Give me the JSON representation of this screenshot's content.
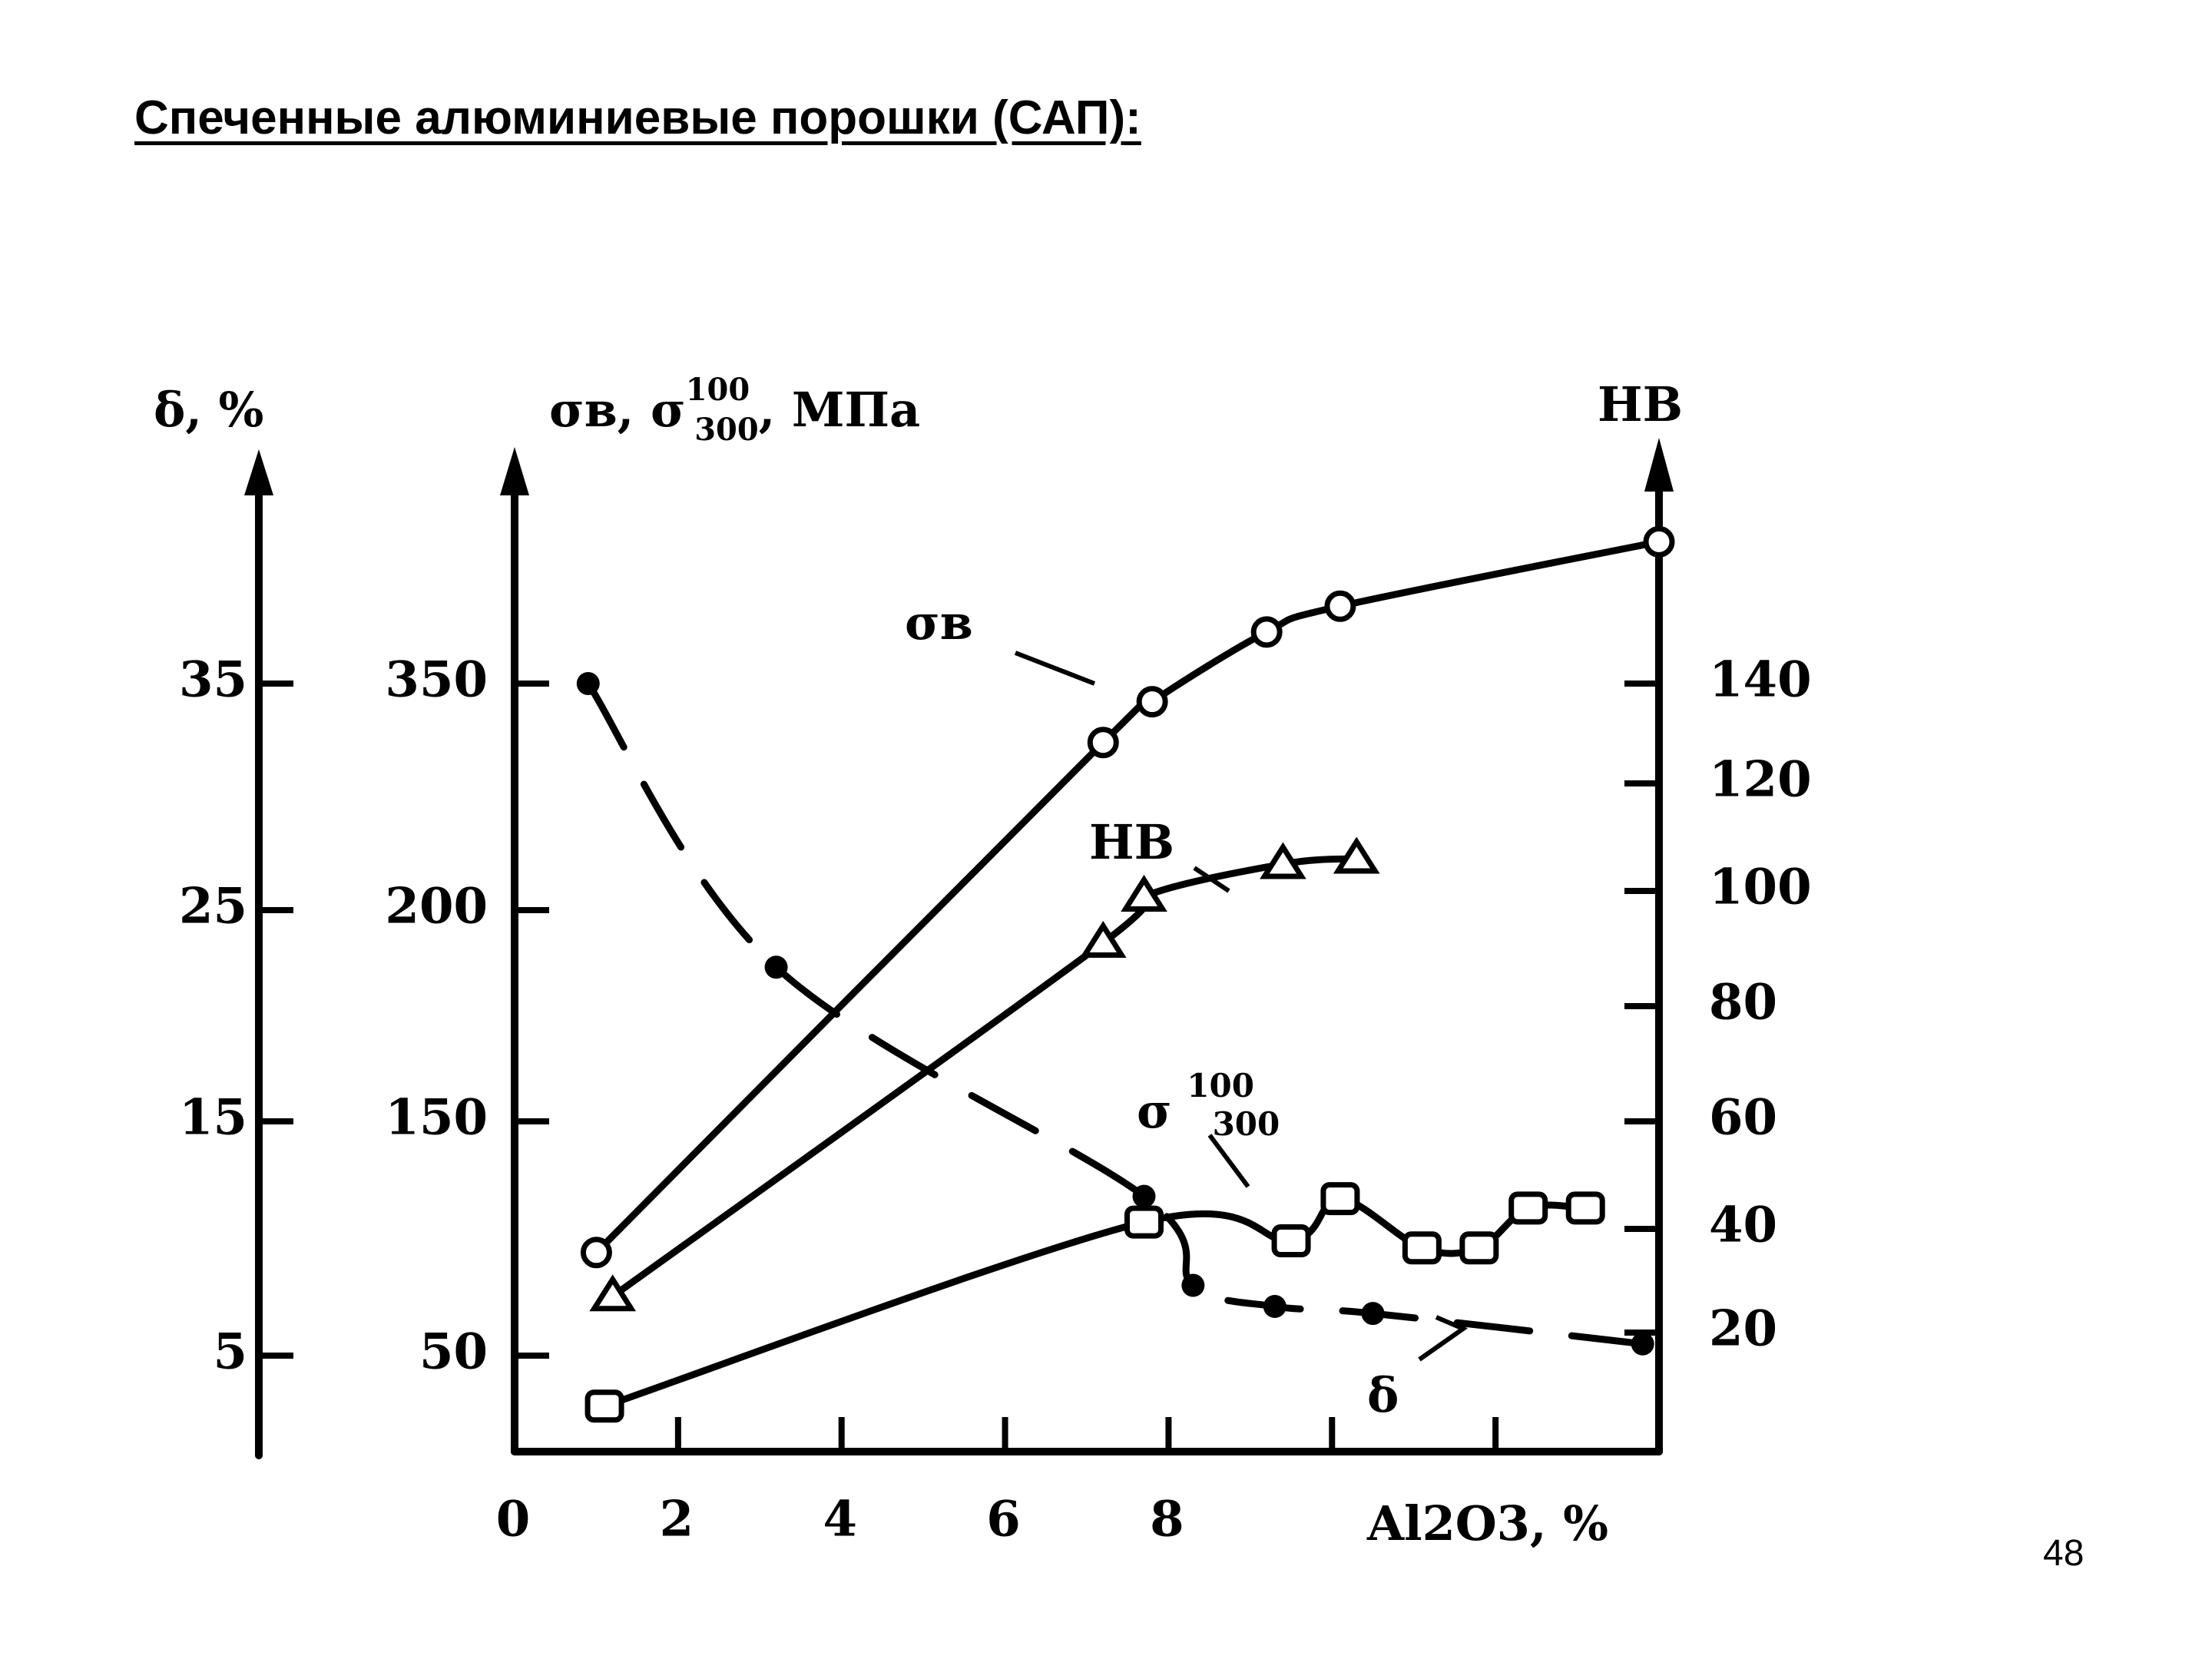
{
  "slide": {
    "title": "Спеченные алюминиевые порошки (САП):",
    "page_number": "48"
  },
  "chart_data": {
    "type": "line",
    "title": "",
    "x": {
      "label": "Al2O3, %",
      "range": [
        0,
        14
      ],
      "ticks": [
        "0",
        "2",
        "4",
        "6",
        "8"
      ]
    },
    "axes": {
      "delta": {
        "label": "δ, %",
        "ticks": [
          35,
          25,
          15,
          5
        ]
      },
      "strength": {
        "label": "σв, σ300 100, МПа",
        "ticks": [
          350,
          200,
          150,
          50
        ]
      },
      "hardness": {
        "label": "HB",
        "ticks": [
          140,
          120,
          100,
          80,
          60,
          40,
          20
        ]
      }
    },
    "series": [
      {
        "name": "σв",
        "axis": "strength",
        "marker": "circle",
        "points": [
          [
            1,
            94
          ],
          [
            7.2,
            311
          ],
          [
            7.8,
            338
          ],
          [
            9.2,
            370
          ],
          [
            10.1,
            380
          ],
          [
            14,
            405
          ]
        ]
      },
      {
        "name": "HB",
        "axis": "hardness",
        "marker": "triangle",
        "points": [
          [
            1.2,
            27
          ],
          [
            7.2,
            91
          ],
          [
            7.7,
            99
          ],
          [
            9.4,
            105
          ],
          [
            10.3,
            106
          ]
        ]
      },
      {
        "name": "σ300 100",
        "axis": "strength",
        "marker": "square",
        "points": [
          [
            1.1,
            36
          ],
          [
            7.7,
            107
          ],
          [
            9.5,
            99
          ],
          [
            10.1,
            117
          ],
          [
            11.1,
            96
          ],
          [
            11.8,
            96
          ],
          [
            12.4,
            113
          ],
          [
            13.1,
            113
          ]
        ]
      },
      {
        "name": "δ",
        "axis": "delta",
        "marker": "dot",
        "dashed": true,
        "points": [
          [
            0.9,
            35
          ],
          [
            3.2,
            22.3
          ],
          [
            7.7,
            11.8
          ],
          [
            8.3,
            8
          ],
          [
            9.3,
            7.1
          ],
          [
            10.5,
            6.8
          ],
          [
            13.8,
            5.5
          ]
        ]
      }
    ],
    "series_labels": {
      "sigma_b": "σв",
      "hb": "HB",
      "sigma_300": "σ",
      "sigma_300_sup": "100",
      "sigma_300_sub": "300",
      "delta": "δ"
    },
    "grid": false,
    "legend": "none"
  }
}
